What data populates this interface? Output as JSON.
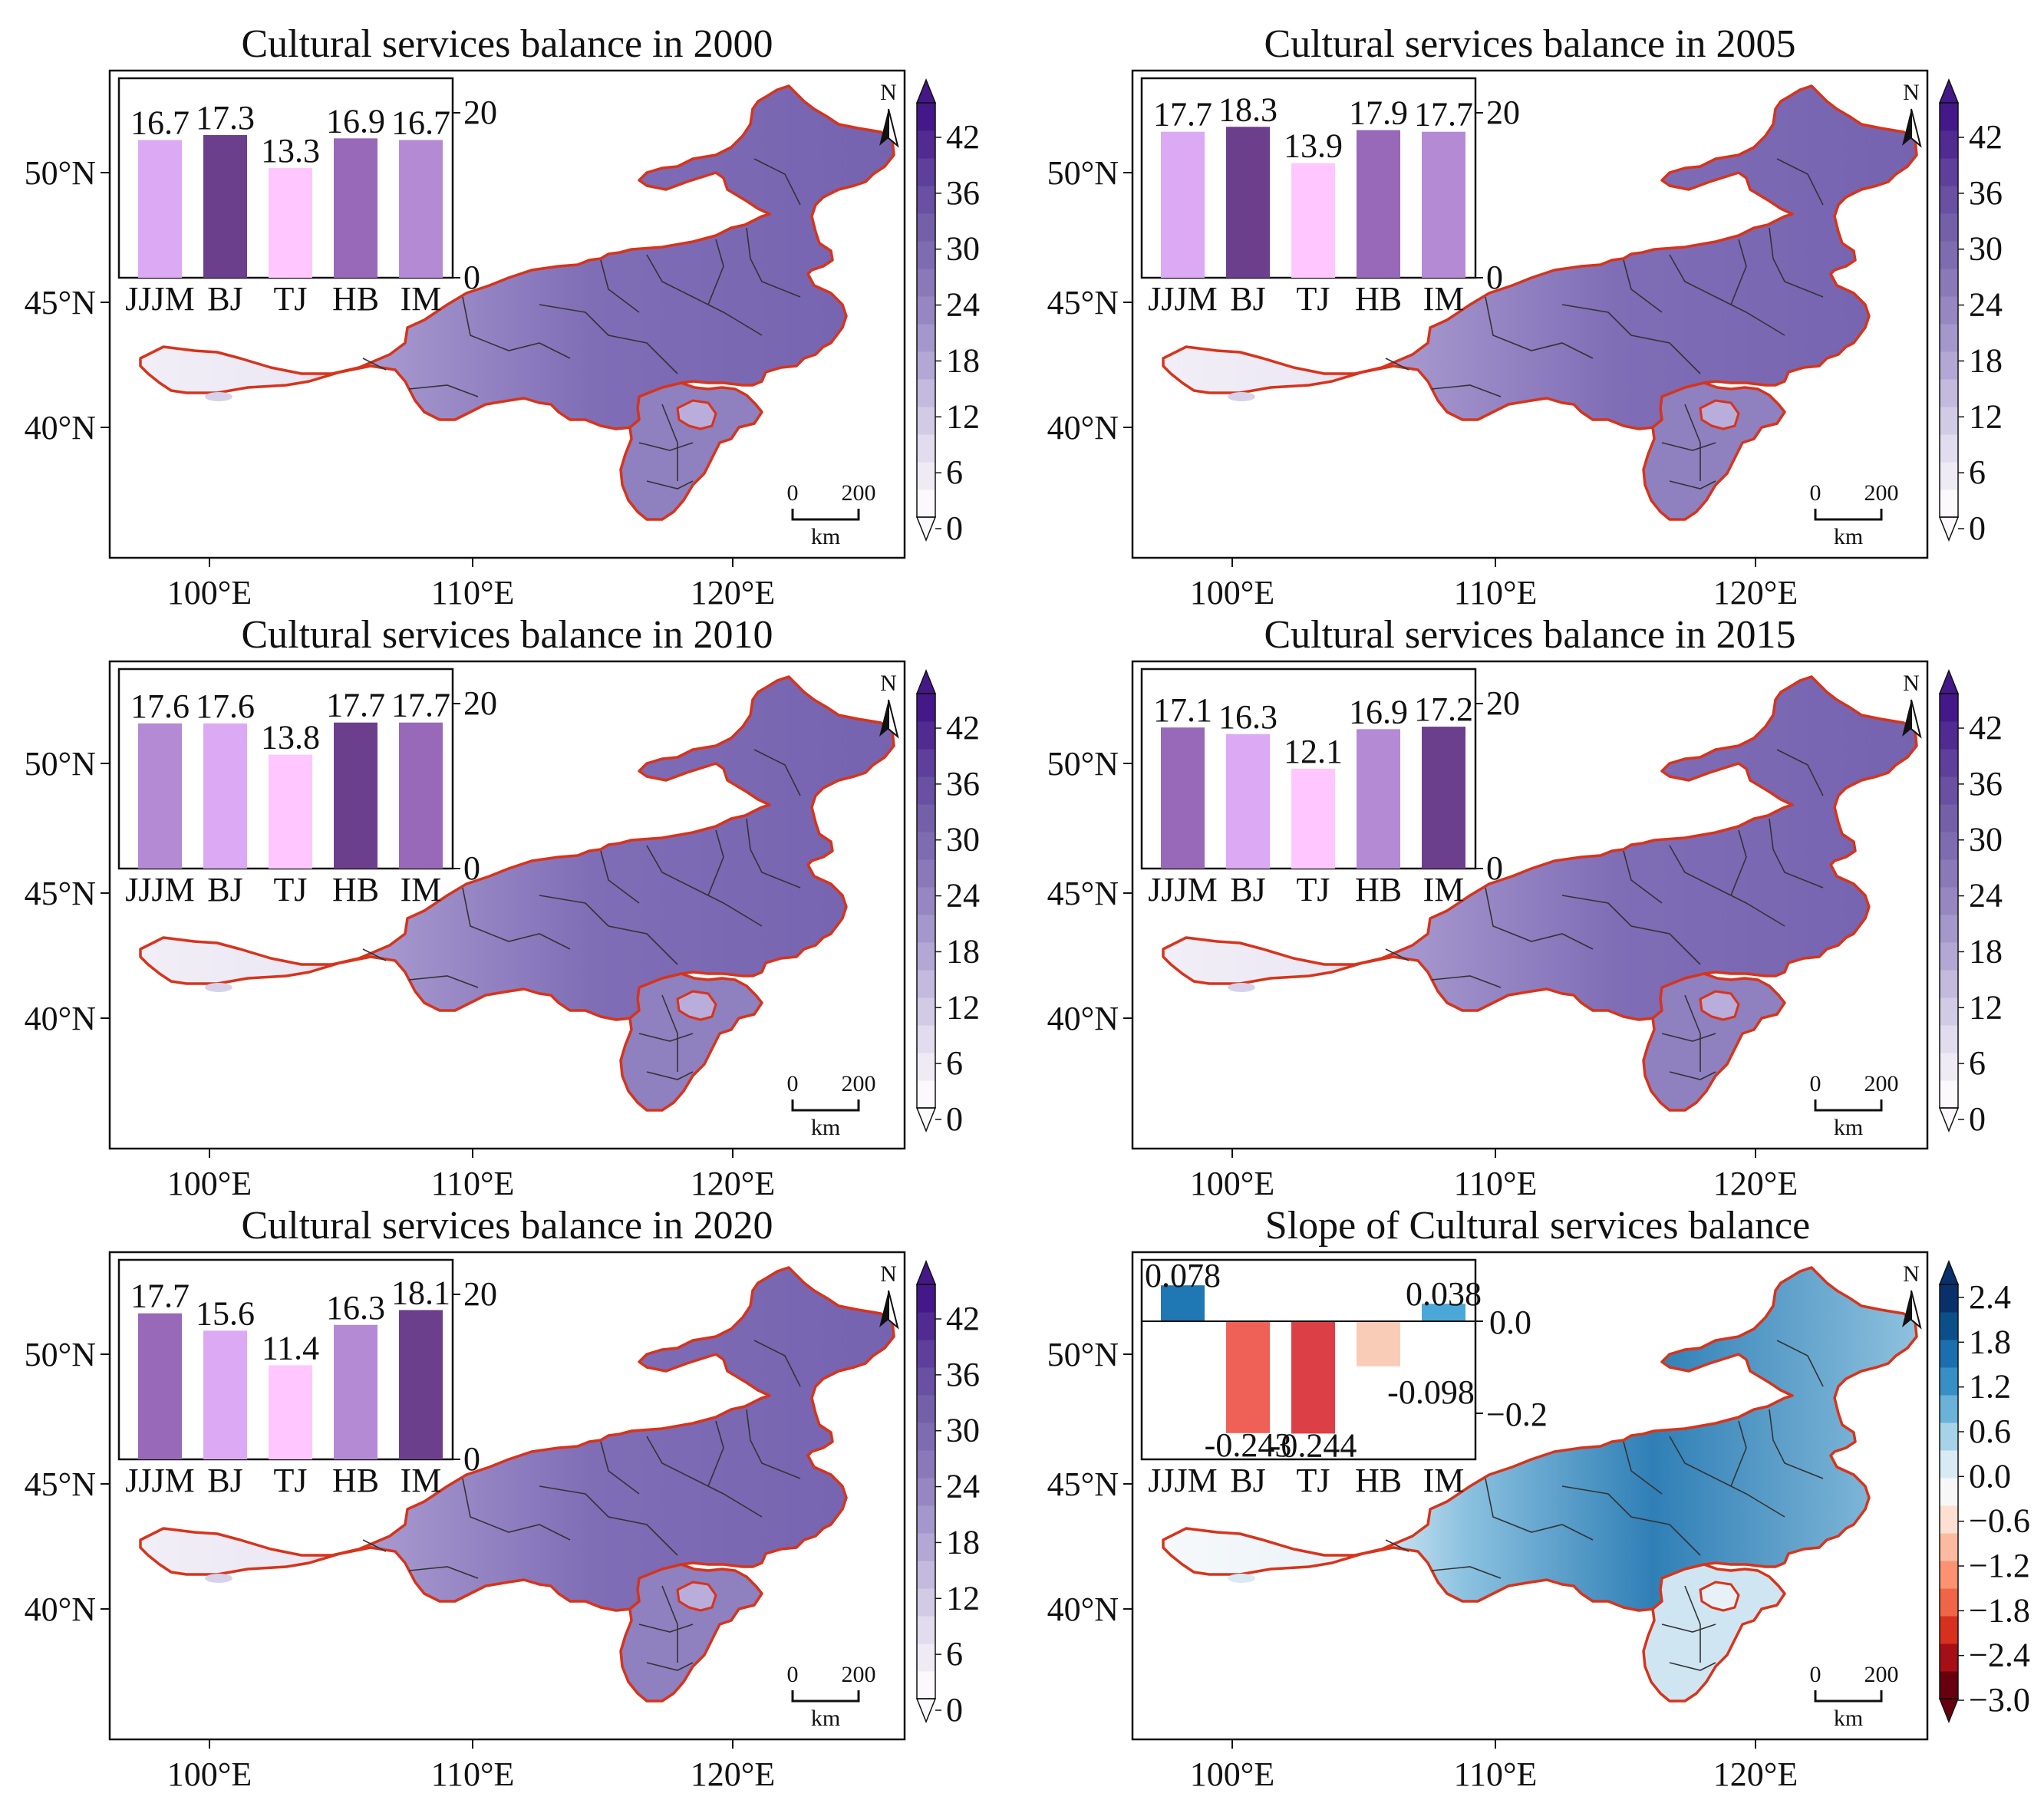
{
  "colors": {
    "purple_ramp": [
      "#fbf9fc",
      "#efebf5",
      "#e1dcee",
      "#d2cbe6",
      "#c3bade",
      "#b3a8d5",
      "#a497cb",
      "#9686c1",
      "#8a79b8",
      "#7e6cb0",
      "#7360a9",
      "#6950a2",
      "#5e3f9b",
      "#512a92",
      "#45188a"
    ],
    "slope_ramp": [
      "#67000d",
      "#a50f15",
      "#d7301f",
      "#ef6548",
      "#fc9272",
      "#fcbba1",
      "#fde0d2",
      "#f7f7f7",
      "#d8ebf4",
      "#a7d3e8",
      "#6bb2d8",
      "#3690c5",
      "#1c6fae",
      "#0b4f8a",
      "#08306b"
    ],
    "boundary": "#d6341b",
    "inner_boundary": "#333333",
    "bar_levels": [
      "#ffc6ff",
      "#dca9f5",
      "#b58ad5",
      "#9868b9",
      "#6c3f8c"
    ],
    "slope_bar_colors": {
      "pos_strong": "#1f77b4",
      "pos": "#4aa8d8",
      "neg_light": "#f9ccb7",
      "neg": "#ef6157",
      "neg_strong": "#dc3f45"
    }
  },
  "axes": {
    "x_ticks": [
      "100°E",
      "110°E",
      "120°E"
    ],
    "y_ticks": [
      "50°N",
      "45°N",
      "40°N"
    ]
  },
  "north_label": "N",
  "scalebar": {
    "start": "0",
    "end": "200",
    "unit": "km"
  },
  "bar_categories": [
    "JJJM",
    "BJ",
    "TJ",
    "HB",
    "IM"
  ],
  "colorbar_purple_ticks": [
    "42",
    "36",
    "30",
    "24",
    "18",
    "12",
    "6",
    "0"
  ],
  "colorbar_slope_ticks": [
    "2.4",
    "1.8",
    "1.2",
    "0.6",
    "0.0",
    "−0.6",
    "−1.2",
    "−1.8",
    "−2.4",
    "−3.0"
  ],
  "panels": [
    {
      "title": "Cultural services balance in 2000",
      "bar_values": [
        16.7,
        17.3,
        13.3,
        16.9,
        16.7
      ],
      "bar_color_levels": [
        1,
        4,
        0,
        3,
        2
      ],
      "inset_ticks": [
        "20",
        "0"
      ]
    },
    {
      "title": "Cultural services balance in 2005",
      "bar_values": [
        17.7,
        18.3,
        13.9,
        17.9,
        17.7
      ],
      "bar_color_levels": [
        1,
        4,
        0,
        3,
        2
      ],
      "inset_ticks": [
        "20",
        "0"
      ]
    },
    {
      "title": "Cultural services balance in 2010",
      "bar_values": [
        17.6,
        17.6,
        13.8,
        17.7,
        17.7
      ],
      "bar_color_levels": [
        2,
        1,
        0,
        4,
        3
      ],
      "inset_ticks": [
        "20",
        "0"
      ]
    },
    {
      "title": "Cultural services balance in 2015",
      "bar_values": [
        17.1,
        16.3,
        12.1,
        16.9,
        17.2
      ],
      "bar_color_levels": [
        3,
        1,
        0,
        2,
        4
      ],
      "inset_ticks": [
        "20",
        "0"
      ]
    },
    {
      "title": "Cultural services balance in 2020",
      "bar_values": [
        17.7,
        15.6,
        11.4,
        16.3,
        18.1
      ],
      "bar_color_levels": [
        3,
        1,
        0,
        2,
        4
      ],
      "inset_ticks": [
        "20",
        "0"
      ]
    },
    {
      "title": "Slope of  Cultural services balance",
      "bar_values": [
        0.078,
        -0.243,
        -0.244,
        -0.098,
        0.038
      ],
      "bar_labels": [
        "0.078",
        "-0.243",
        "-0.244",
        "-0.098",
        "0.038"
      ],
      "inset_ticks": [
        "0.0",
        "−0.2"
      ],
      "is_slope": true
    }
  ]
}
